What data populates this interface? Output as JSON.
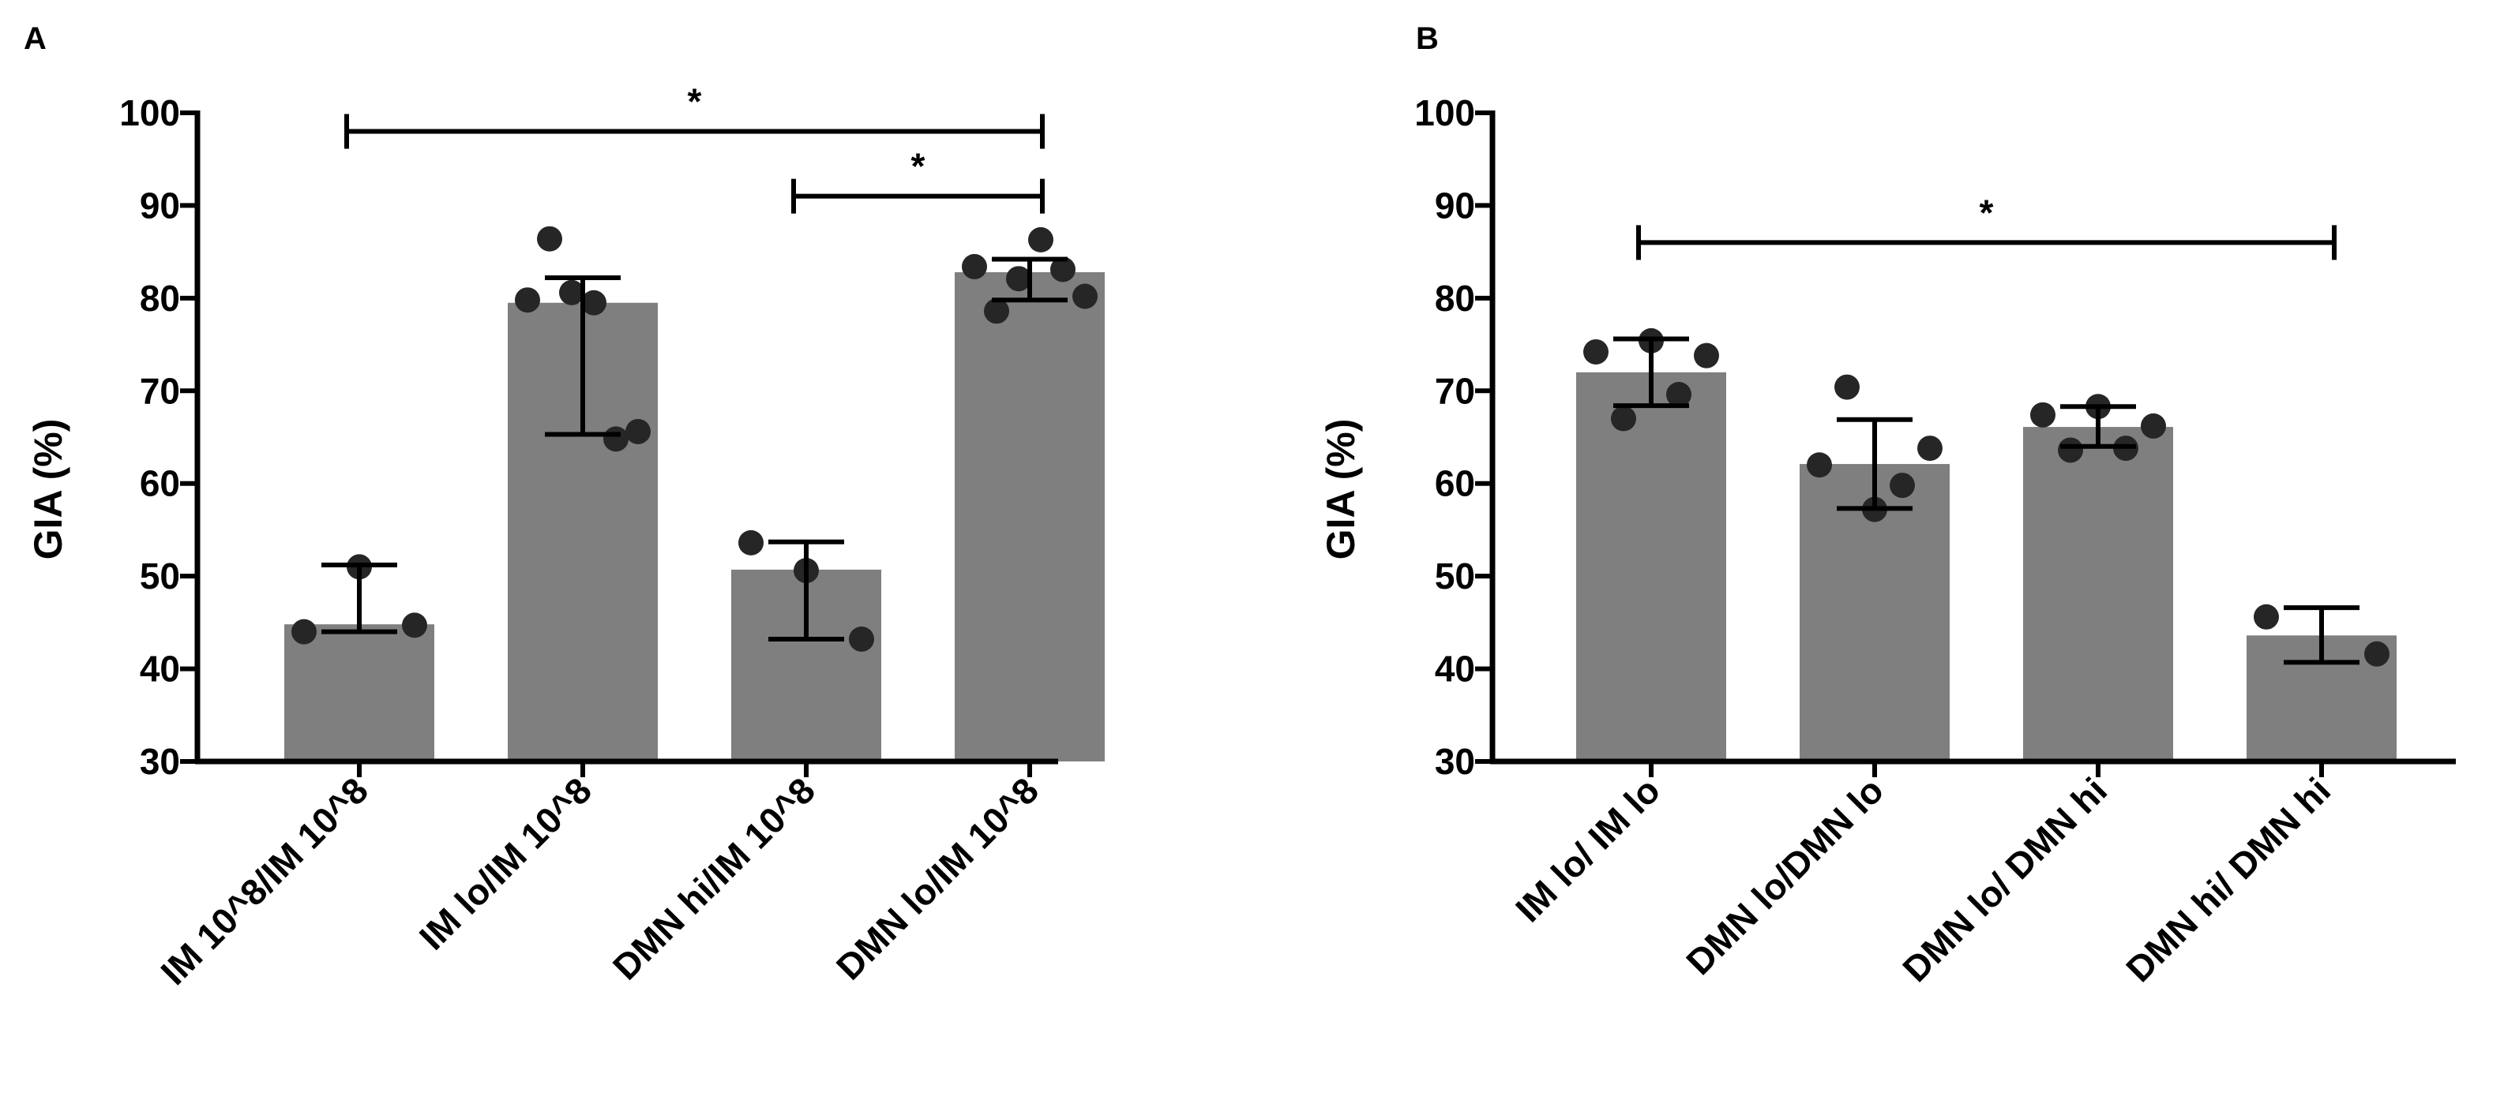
{
  "chart_data": [
    {
      "panel": "A",
      "type": "bar",
      "ylabel": "GIA (%)",
      "xlabel": "",
      "ylim": [
        30,
        100
      ],
      "yticks": [
        "30",
        "40",
        "50",
        "60",
        "70",
        "80",
        "90",
        "100"
      ],
      "bar_color": "#7f7f7f",
      "categories": [
        "IM 10^8/IM 10^8",
        "IM lo/IM 10^8",
        "DMN hi/IM 10^8",
        "DMN lo/IM 10^8"
      ],
      "values": [
        44.8,
        79.5,
        50.7,
        82.8
      ],
      "error": [
        {
          "low": 44.0,
          "high": 51.2
        },
        {
          "low": 65.3,
          "high": 82.2
        },
        {
          "low": 43.2,
          "high": 53.7
        },
        {
          "low": 79.8,
          "high": 84.2
        }
      ],
      "points": [
        [
          44.0,
          51.0,
          44.7
        ],
        [
          79.8,
          86.4,
          80.6,
          79.5,
          64.8,
          65.6
        ],
        [
          53.6,
          50.6,
          43.2
        ],
        [
          83.4,
          78.6,
          82.1,
          86.3,
          83.1,
          80.2
        ]
      ],
      "significance": [
        {
          "from": 0,
          "to": 3,
          "level": 98,
          "label": "*"
        },
        {
          "from": 2,
          "to": 3,
          "level": 91,
          "label": "*"
        }
      ]
    },
    {
      "panel": "B",
      "type": "bar",
      "ylabel": "GIA (%)",
      "xlabel": "",
      "ylim": [
        30,
        100
      ],
      "yticks": [
        "30",
        "40",
        "50",
        "60",
        "70",
        "80",
        "90",
        "100"
      ],
      "bar_color": "#7f7f7f",
      "categories": [
        "IM lo/ IM lo",
        "DMN lo/DMN lo",
        "DMN lo/ DMN hi",
        "DMN hi/ DMN hi"
      ],
      "values": [
        72.0,
        62.1,
        66.1,
        43.6
      ],
      "error": [
        {
          "low": 68.4,
          "high": 75.6
        },
        {
          "low": 57.3,
          "high": 66.9
        },
        {
          "low": 64.0,
          "high": 68.3
        },
        {
          "low": 40.7,
          "high": 46.6
        }
      ],
      "points": [
        [
          74.2,
          67.0,
          75.4,
          69.6,
          73.8
        ],
        [
          62.0,
          70.4,
          57.2,
          59.8,
          63.8
        ],
        [
          67.4,
          63.6,
          68.3,
          63.8,
          66.2
        ],
        [
          45.6,
          41.6
        ]
      ],
      "significance": [
        {
          "from": 0,
          "to": 3,
          "level": 86,
          "label": "*"
        }
      ]
    }
  ]
}
